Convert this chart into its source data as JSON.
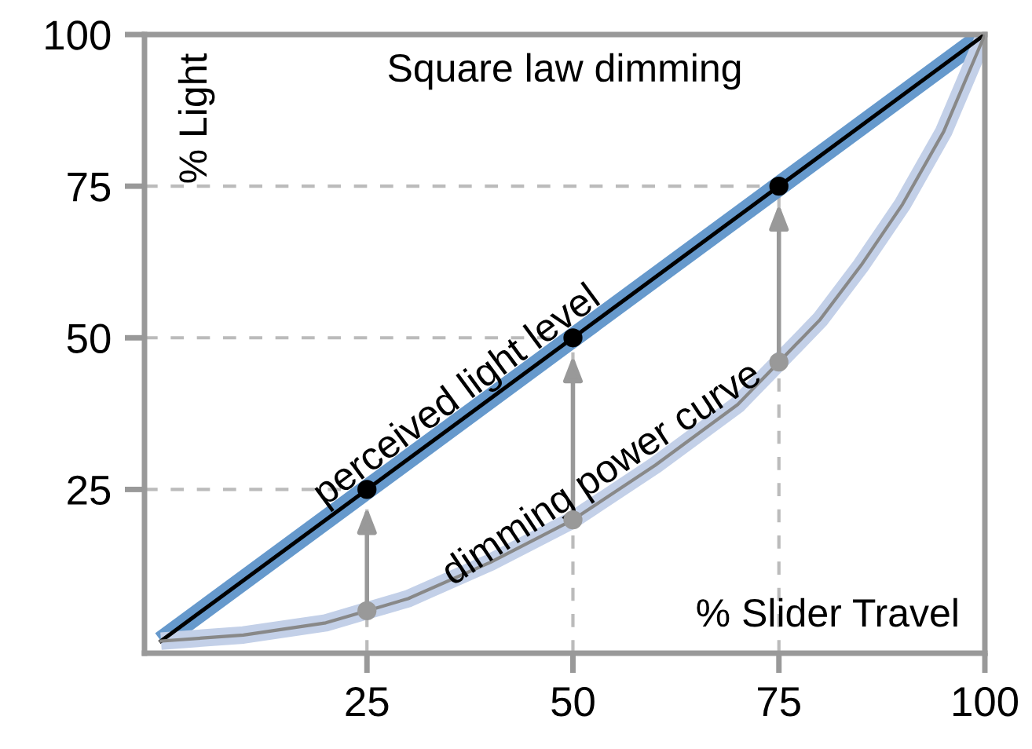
{
  "chart_data": {
    "type": "line",
    "title": "Square law dimming",
    "xlabel": "% Slider Travel",
    "ylabel": "% Light",
    "xlim": [
      -2,
      100
    ],
    "ylim": [
      -2,
      100
    ],
    "xticks": [
      25,
      50,
      75,
      100
    ],
    "yticks": [
      25,
      50,
      75,
      100
    ],
    "grid": true,
    "series": [
      {
        "name": "perceived light level",
        "color": "#6699cc",
        "x": [
          0,
          25,
          50,
          75,
          100
        ],
        "values": [
          0,
          25,
          50,
          75,
          100
        ]
      },
      {
        "name": "dimming power curve",
        "color": "#c3d0e8",
        "x": [
          0,
          10,
          20,
          25,
          30,
          40,
          50,
          60,
          70,
          75,
          80,
          85,
          90,
          95,
          100
        ],
        "values": [
          0,
          1,
          3,
          5,
          7,
          13,
          20,
          29,
          39,
          46,
          53,
          62,
          72,
          84,
          100
        ]
      },
      {
        "type": "scatter",
        "color": "#000000",
        "x": [
          25,
          50,
          75
        ],
        "values": [
          25,
          50,
          75
        ]
      },
      {
        "type": "scatter",
        "color": "#999999",
        "x": [
          25,
          50,
          75
        ],
        "values": [
          5,
          20,
          46
        ]
      }
    ]
  }
}
